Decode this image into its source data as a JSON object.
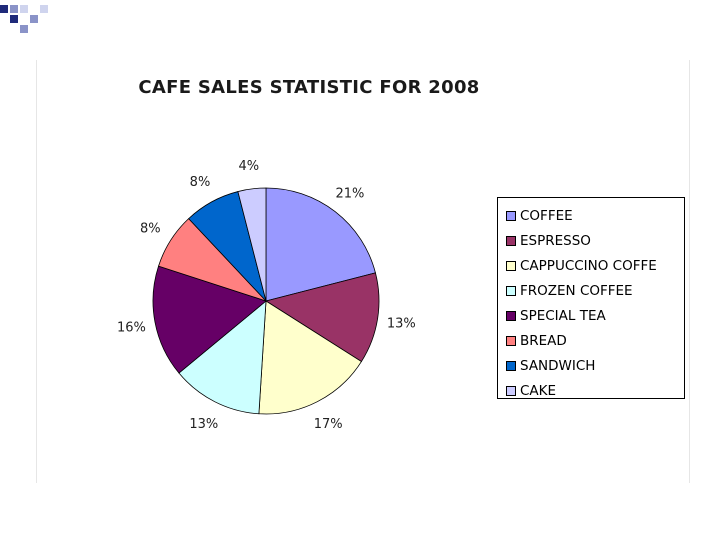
{
  "slide": {
    "accent_colors": [
      "#1f2a7a",
      "#8a93c8",
      "#cfd4ee"
    ]
  },
  "chart_data": {
    "type": "pie",
    "title": "CAFE SALES STATISTIC FOR 2008",
    "categories": [
      "COFFEE",
      "ESPRESSO",
      "CAPPUCCINO COFFE",
      "FROZEN COFFEE",
      "SPECIAL TEA",
      "BREAD",
      "SANDWICH",
      "CAKE"
    ],
    "values": [
      21,
      13,
      17,
      13,
      16,
      8,
      8,
      4
    ],
    "value_labels": [
      "21%",
      "13%",
      "17%",
      "13%",
      "16%",
      "8%",
      "8%",
      "4%"
    ],
    "colors": [
      "#9999ff",
      "#993366",
      "#ffffcc",
      "#ccffff",
      "#660066",
      "#ff8080",
      "#0066cc",
      "#ccccff"
    ],
    "legend": "right"
  }
}
